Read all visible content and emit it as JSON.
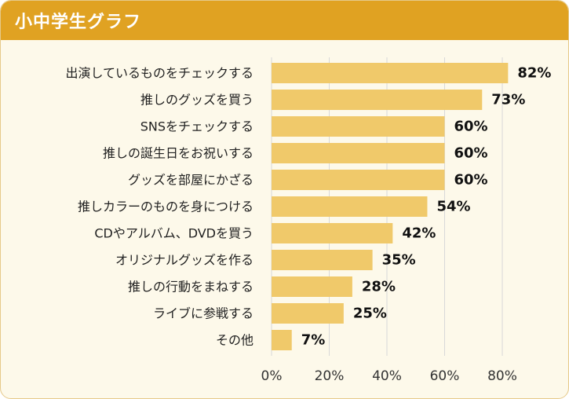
{
  "header": {
    "title": "小中学生グラフ"
  },
  "chart_data": {
    "type": "bar",
    "orientation": "horizontal",
    "title": "小中学生グラフ",
    "categories": [
      "出演しているものをチェックする",
      "推しのグッズを買う",
      "SNSをチェックする",
      "推しの誕生日をお祝いする",
      "グッズを部屋にかざる",
      "推しカラーのものを身につける",
      "CDやアルバム、DVDを買う",
      "オリジナルグッズを作る",
      "推しの行動をまねする",
      "ライブに参戦する",
      "その他"
    ],
    "values": [
      82,
      73,
      60,
      60,
      60,
      54,
      42,
      35,
      28,
      25,
      7
    ],
    "value_labels": [
      "82%",
      "73%",
      "60%",
      "60%",
      "60%",
      "54%",
      "42%",
      "35%",
      "28%",
      "25%",
      "7%"
    ],
    "xticks": [
      0,
      20,
      40,
      60,
      80
    ],
    "xtick_labels": [
      "0%",
      "20%",
      "40%",
      "60%",
      "80%"
    ],
    "xlim": [
      0,
      80
    ],
    "xlabel": "",
    "ylabel": "",
    "colors": {
      "bar": "#f0c96a",
      "grid": "#d8d8d8",
      "header": "#e0a222",
      "background": "#fdf9ea"
    }
  }
}
